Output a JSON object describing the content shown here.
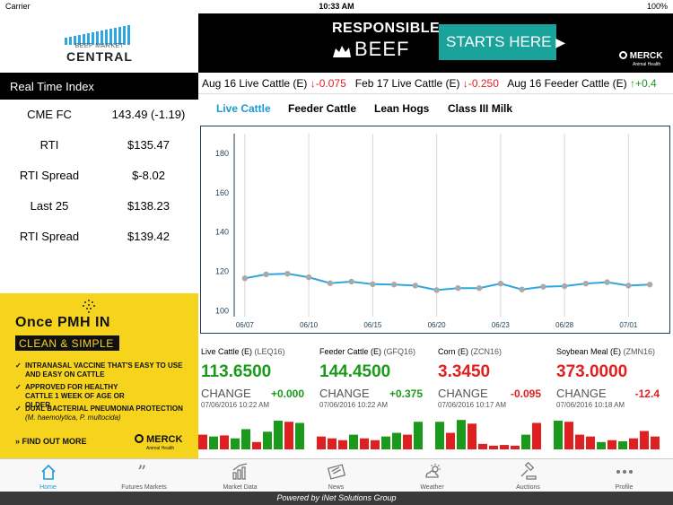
{
  "status_bar": {
    "carrier": "Carrier",
    "time": "10:33 AM",
    "battery": "100%"
  },
  "logo": {
    "line1": "BEEF MARKET",
    "line2": "CENTRAL"
  },
  "rti": {
    "header": "Real Time Index",
    "rows": [
      {
        "label": "CME FC",
        "value": "143.49 (-1.19)"
      },
      {
        "label": "RTI",
        "value": "$135.47"
      },
      {
        "label": "RTI Spread",
        "value": "$-8.02"
      },
      {
        "label": "Last 25",
        "value": "$138.23"
      },
      {
        "label": "RTI Spread",
        "value": "$139.42"
      }
    ]
  },
  "ad_left": {
    "headline": "Once PMH IN",
    "band": "CLEAN & SIMPLE",
    "bullet1": "INTRANASAL VACCINE THAT'S EASY TO USE AND EASY ON CATTLE",
    "bullet2": "APPROVED FOR HEALTHY CATTLE 1 WEEK OF AGE OR OLDER",
    "bullet3": "DUAL BACTERIAL PNEUMONIA PROTECTION",
    "bullet3_sub": "(M. haemolytica, P. multocida)",
    "cta": "FIND OUT MORE",
    "brand": "MERCK",
    "brand_sub": "Animal Health",
    "colors": {
      "background": "#f6d41e"
    }
  },
  "ad_top": {
    "title1": "RESPONSIBLE",
    "title2": "BEEF",
    "cta": "STARTS HERE",
    "brand": "MERCK",
    "brand_sub": "Animal Health",
    "colors": {
      "background": "#000000",
      "button": "#1aa39a"
    }
  },
  "ticker": [
    {
      "name": "Aug 16 Live Cattle (E)",
      "dir": "down",
      "change": "-0.075"
    },
    {
      "name": "Feb 17 Live Cattle (E)",
      "dir": "down",
      "change": "-0.250"
    },
    {
      "name": "Aug 16 Feeder Cattle (E)",
      "dir": "up",
      "change": "+0.4"
    }
  ],
  "tabs": [
    {
      "label": "Live Cattle",
      "active": true
    },
    {
      "label": "Feeder Cattle",
      "active": false
    },
    {
      "label": "Lean Hogs",
      "active": false
    },
    {
      "label": "Class III Milk",
      "active": false
    }
  ],
  "chart_data": {
    "type": "line",
    "x": [
      "06/07",
      "06/08",
      "06/09",
      "06/10",
      "06/13",
      "06/14",
      "06/15",
      "06/16",
      "06/17",
      "06/20",
      "06/21",
      "06/22",
      "06/23",
      "06/24",
      "06/27",
      "06/28",
      "06/29",
      "06/30",
      "07/01",
      "07/05"
    ],
    "series": [
      {
        "values": [
          116.5,
          118.5,
          118.8,
          117.0,
          114.0,
          114.8,
          113.5,
          113.3,
          112.8,
          110.5,
          111.5,
          111.5,
          113.8,
          110.8,
          112.2,
          112.5,
          113.8,
          114.5,
          112.8,
          113.3
        ]
      }
    ],
    "y_ticks": [
      "180",
      "160",
      "140",
      "120",
      "100"
    ],
    "x_ticks": [
      "06/07",
      "06/10",
      "06/15",
      "06/20",
      "06/23",
      "06/28",
      "07/01"
    ],
    "x_tick_index": [
      0,
      3,
      6,
      9,
      12,
      15,
      18
    ],
    "ylim": [
      97,
      190
    ],
    "grid": "vertical",
    "colors": {
      "line": "#2ea6df",
      "marker": "#a9a9a9",
      "frame": "#1c3f57"
    }
  },
  "quotes": [
    {
      "name": "Live Cattle (E)",
      "symbol": "(LEQ16)",
      "price": "113.6500",
      "change_label": "CHANGE",
      "change": "+0.000",
      "date": "07/06/2016 10:22 AM",
      "color": "#1a9a1a",
      "bars": [
        {
          "v": 0.4,
          "c": "r"
        },
        {
          "v": 0.35,
          "c": "g"
        },
        {
          "v": 0.38,
          "c": "r"
        },
        {
          "v": 0.3,
          "c": "g"
        },
        {
          "v": 0.55,
          "c": "g"
        },
        {
          "v": 0.2,
          "c": "r"
        },
        {
          "v": 0.48,
          "c": "g"
        },
        {
          "v": 0.78,
          "c": "g"
        },
        {
          "v": 0.75,
          "c": "r"
        },
        {
          "v": 0.72,
          "c": "g"
        }
      ]
    },
    {
      "name": "Feeder Cattle (E)",
      "symbol": "(GFQ16)",
      "price": "144.4500",
      "change_label": "CHANGE",
      "change": "+0.375",
      "date": "07/06/2016 10:22 AM",
      "color": "#1a9a1a",
      "bars": [
        {
          "v": 0.35,
          "c": "r"
        },
        {
          "v": 0.3,
          "c": "r"
        },
        {
          "v": 0.25,
          "c": "r"
        },
        {
          "v": 0.4,
          "c": "g"
        },
        {
          "v": 0.3,
          "c": "r"
        },
        {
          "v": 0.25,
          "c": "r"
        },
        {
          "v": 0.35,
          "c": "g"
        },
        {
          "v": 0.45,
          "c": "g"
        },
        {
          "v": 0.4,
          "c": "r"
        },
        {
          "v": 0.75,
          "c": "g"
        }
      ]
    },
    {
      "name": "Corn (E)",
      "symbol": "(ZCN16)",
      "price": "3.3450",
      "change_label": "CHANGE",
      "change": "-0.095",
      "date": "07/06/2016 10:17 AM",
      "color": "#e02020",
      "bars": [
        {
          "v": 0.75,
          "c": "g"
        },
        {
          "v": 0.45,
          "c": "r"
        },
        {
          "v": 0.8,
          "c": "g"
        },
        {
          "v": 0.7,
          "c": "r"
        },
        {
          "v": 0.15,
          "c": "r"
        },
        {
          "v": 0.1,
          "c": "r"
        },
        {
          "v": 0.12,
          "c": "r"
        },
        {
          "v": 0.1,
          "c": "r"
        },
        {
          "v": 0.4,
          "c": "g"
        },
        {
          "v": 0.72,
          "c": "r"
        }
      ]
    },
    {
      "name": "Soybean Meal (E)",
      "symbol": "(ZMN16)",
      "price": "373.0000",
      "change_label": "CHANGE",
      "change": "-12.4",
      "date": "07/06/2016 10:18 AM",
      "color": "#e02020",
      "bars": [
        {
          "v": 0.78,
          "c": "g"
        },
        {
          "v": 0.75,
          "c": "r"
        },
        {
          "v": 0.4,
          "c": "r"
        },
        {
          "v": 0.35,
          "c": "r"
        },
        {
          "v": 0.2,
          "c": "g"
        },
        {
          "v": 0.25,
          "c": "r"
        },
        {
          "v": 0.22,
          "c": "g"
        },
        {
          "v": 0.3,
          "c": "r"
        },
        {
          "v": 0.5,
          "c": "r"
        },
        {
          "v": 0.35,
          "c": "r"
        }
      ]
    }
  ],
  "tabbar": [
    {
      "label": "Home",
      "icon": "home-icon",
      "active": true
    },
    {
      "label": "Futures Markets",
      "icon": "quote-icon",
      "active": false
    },
    {
      "label": "Market Data",
      "icon": "bar-chart-icon",
      "active": false
    },
    {
      "label": "News",
      "icon": "newspaper-icon",
      "active": false
    },
    {
      "label": "Weather",
      "icon": "sun-cloud-icon",
      "active": false
    },
    {
      "label": "Auctions",
      "icon": "gavel-icon",
      "active": false
    },
    {
      "label": "Profile",
      "icon": "more-icon",
      "active": false
    }
  ],
  "footer": "Powered by iNet Solutions Group"
}
